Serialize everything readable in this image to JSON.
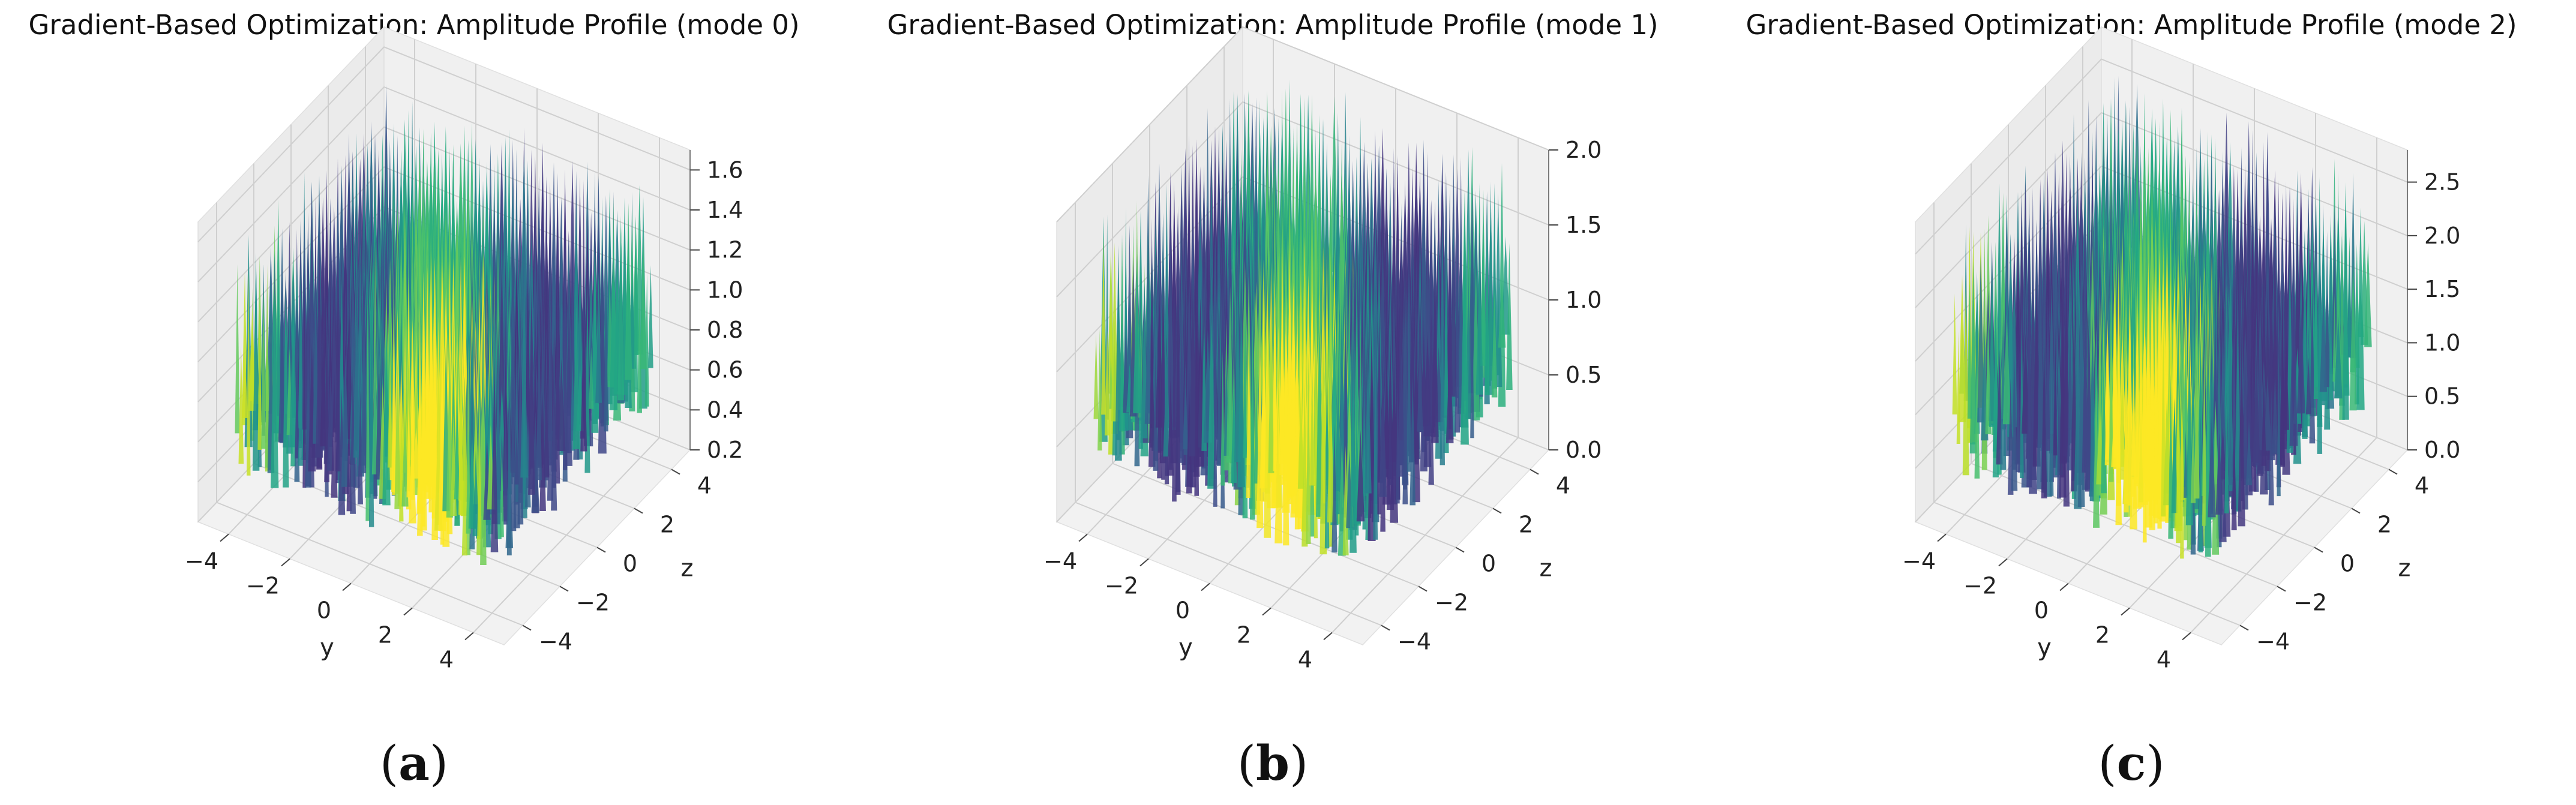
{
  "panels": [
    {
      "title": "Gradient-Based Optimization: Amplitude Profile (mode 0)",
      "caption_open": "(",
      "caption_letter": "a",
      "caption_close": ")"
    },
    {
      "title": "Gradient-Based Optimization: Amplitude Profile (mode 1)",
      "caption_open": "(",
      "caption_letter": "b",
      "caption_close": ")"
    },
    {
      "title": "Gradient-Based Optimization: Amplitude Profile (mode 2)",
      "caption_open": "(",
      "caption_letter": "c",
      "caption_close": ")"
    }
  ],
  "chart_data": [
    {
      "type": "surface3d",
      "title": "Gradient-Based Optimization: Amplitude Profile (mode 0)",
      "xlabel": "y",
      "ylabel": "z",
      "zlabel": "",
      "colormap": "viridis",
      "xlim": [
        -5,
        5
      ],
      "ylim": [
        -5,
        5
      ],
      "zlim": [
        0.2,
        1.7
      ],
      "x_ticks": [
        "−4",
        "−2",
        "0",
        "2",
        "4"
      ],
      "y_ticks": [
        "−4",
        "−2",
        "0",
        "2",
        "4"
      ],
      "z_ticks": [
        "0.2",
        "0.4",
        "0.6",
        "0.8",
        "1.0",
        "1.2",
        "1.4",
        "1.6"
      ],
      "z_tick_values": [
        0.2,
        0.4,
        0.6,
        0.8,
        1.0,
        1.2,
        1.4,
        1.6
      ],
      "amplitude_range": [
        0.2,
        1.6
      ],
      "grid": true
    },
    {
      "type": "surface3d",
      "title": "Gradient-Based Optimization: Amplitude Profile (mode 1)",
      "xlabel": "y",
      "ylabel": "z",
      "zlabel": "",
      "colormap": "viridis",
      "xlim": [
        -5,
        5
      ],
      "ylim": [
        -5,
        5
      ],
      "zlim": [
        0.0,
        2.0
      ],
      "x_ticks": [
        "−4",
        "−2",
        "0",
        "2",
        "4"
      ],
      "y_ticks": [
        "−4",
        "−2",
        "0",
        "2",
        "4"
      ],
      "z_ticks": [
        "0.0",
        "0.5",
        "1.0",
        "1.5",
        "2.0"
      ],
      "z_tick_values": [
        0.0,
        0.5,
        1.0,
        1.5,
        2.0
      ],
      "amplitude_range": [
        0.0,
        2.0
      ],
      "grid": true
    },
    {
      "type": "surface3d",
      "title": "Gradient-Based Optimization: Amplitude Profile (mode 2)",
      "xlabel": "y",
      "ylabel": "z",
      "zlabel": "",
      "colormap": "viridis",
      "xlim": [
        -5,
        5
      ],
      "ylim": [
        -5,
        5
      ],
      "zlim": [
        0.0,
        2.8
      ],
      "x_ticks": [
        "−4",
        "−2",
        "0",
        "2",
        "4"
      ],
      "y_ticks": [
        "−4",
        "−2",
        "0",
        "2",
        "4"
      ],
      "z_ticks": [
        "0.0",
        "0.5",
        "1.0",
        "1.5",
        "2.0",
        "2.5"
      ],
      "z_tick_values": [
        0.0,
        0.5,
        1.0,
        1.5,
        2.0,
        2.5
      ],
      "amplitude_range": [
        0.0,
        2.7
      ],
      "grid": true
    }
  ]
}
